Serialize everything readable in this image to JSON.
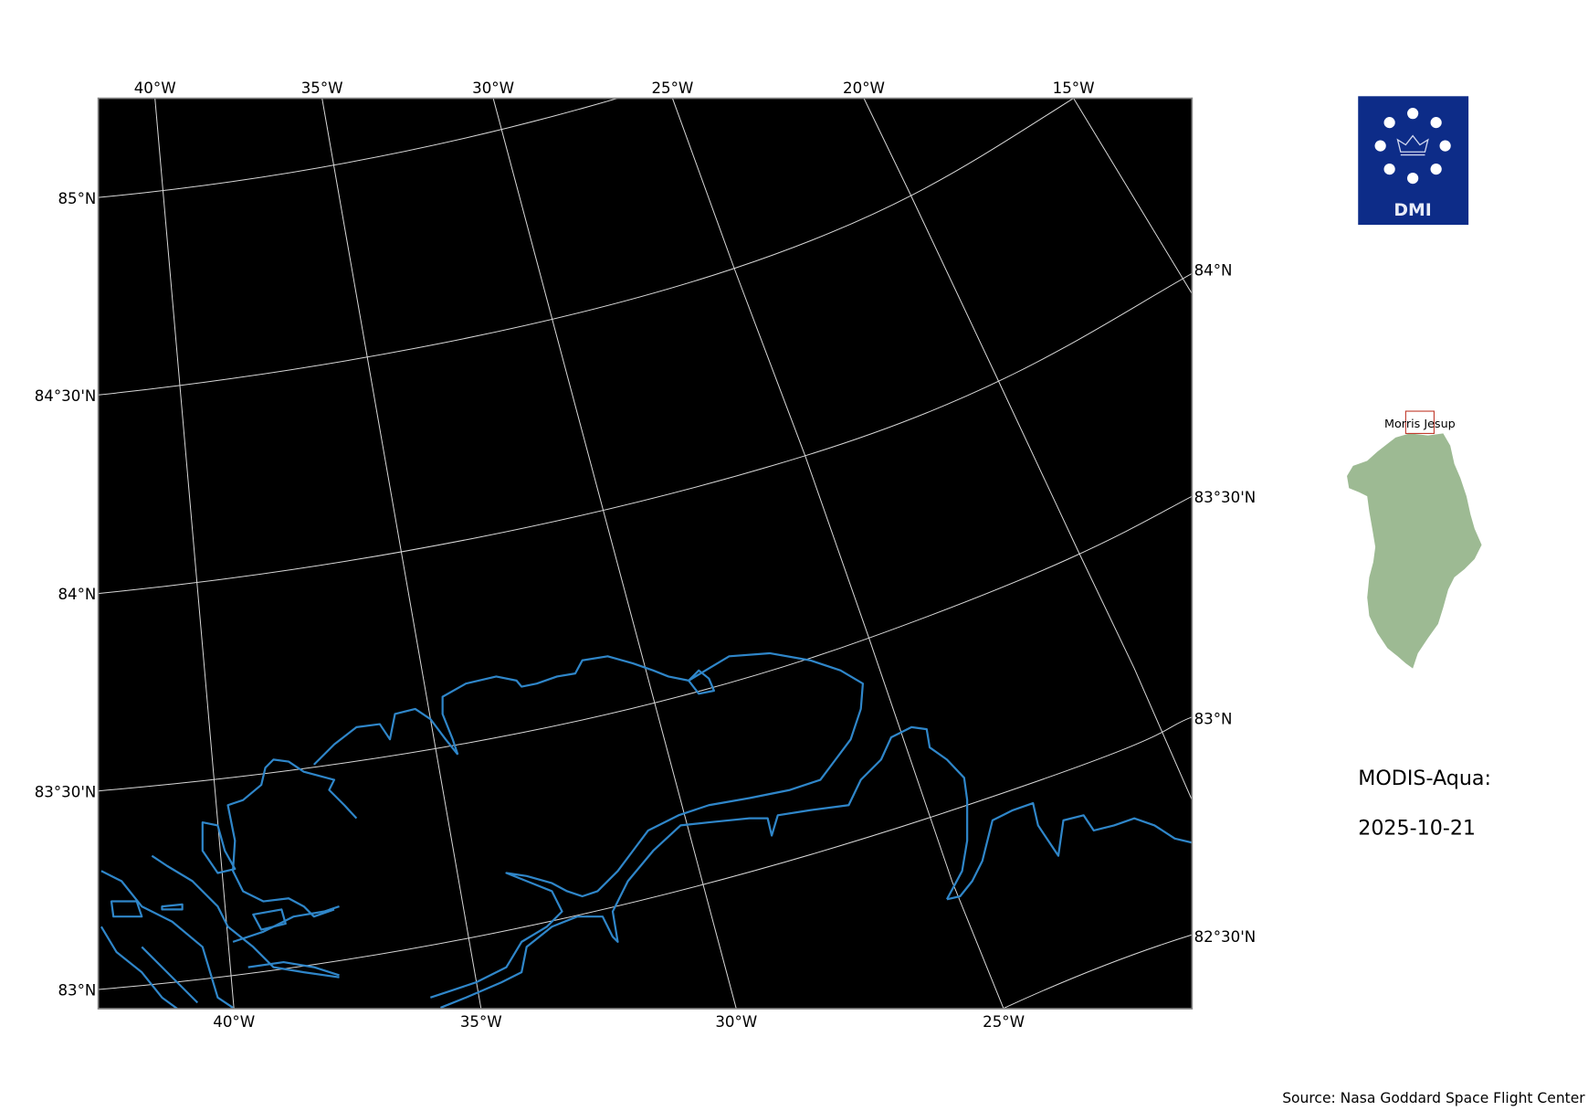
{
  "map": {
    "background_color": "#000000",
    "coastline_color": "#2f86c9",
    "graticule_color": "#d9d9d9",
    "top_lon_labels": [
      "40°W",
      "35°W",
      "30°W",
      "25°W",
      "20°W",
      "15°W"
    ],
    "bottom_lon_labels": [
      "40°W",
      "35°W",
      "30°W",
      "25°W"
    ],
    "left_lat_labels": [
      "85°N",
      "84°30'N",
      "84°N",
      "83°30'N",
      "83°N"
    ],
    "right_lat_labels": [
      "84°N",
      "83°30'N",
      "83°N",
      "82°30'N"
    ]
  },
  "logo": {
    "text": "DMI",
    "color": "#0d2c88"
  },
  "inset": {
    "label": "Morris Jesup",
    "land_color": "#9dba93",
    "box_color": "#c0392b"
  },
  "title": {
    "line1": "MODIS-Aqua:",
    "line2": "2025-10-21"
  },
  "source": "Source: Nasa Goddard Space Flight Center"
}
